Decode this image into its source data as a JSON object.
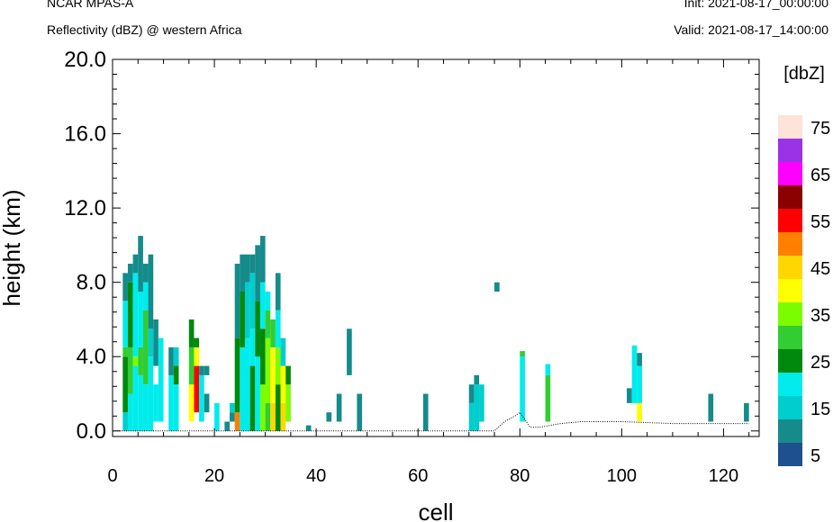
{
  "header": {
    "model": "NCAR MPAS-A",
    "field": "Reflectivity (dBZ) @ western Africa",
    "init": "Init: 2021-08-17_00:00:00",
    "valid": "Valid: 2021-08-17_14:00:00"
  },
  "chart_data": {
    "type": "heatmap",
    "title": "Reflectivity (dBZ) @ western Africa",
    "xlabel": "cell",
    "ylabel": "height (km)",
    "xlim": [
      0,
      127
    ],
    "ylim": [
      -0.3,
      20
    ],
    "x_ticks": [
      0,
      20,
      40,
      60,
      80,
      100,
      120
    ],
    "y_ticks": [
      0.0,
      4.0,
      8.0,
      12.0,
      16.0,
      20.0
    ],
    "y_tick_labels": [
      "0.0",
      "4.0",
      "8.0",
      "12.0",
      "16.0",
      "20.0"
    ],
    "colorbar": {
      "unit": "[dbZ]",
      "levels": [
        0,
        5,
        10,
        15,
        20,
        25,
        30,
        35,
        40,
        45,
        50,
        55,
        60,
        65,
        70,
        75,
        80
      ],
      "colors": [
        "#1e4f8e",
        "#158b8b",
        "#00cdcd",
        "#00ecec",
        "#00890c",
        "#32cd32",
        "#7cfc00",
        "#ffff00",
        "#ffd700",
        "#ff8000",
        "#ff0000",
        "#8b0000",
        "#ff00ff",
        "#9a32e6",
        "#fde3d8"
      ],
      "tick_values": [
        5,
        15,
        25,
        35,
        45,
        55,
        65,
        75
      ],
      "tick_labels": [
        "5",
        "15",
        "25",
        "35",
        "45",
        "55",
        "65",
        "75"
      ]
    },
    "columns": [
      {
        "x": 2.5,
        "segments": [
          [
            0.0,
            1.0,
            10
          ],
          [
            1.0,
            4.0,
            20
          ],
          [
            4.0,
            4.5,
            25
          ],
          [
            4.5,
            7.0,
            15
          ],
          [
            7.0,
            8.5,
            5
          ]
        ]
      },
      {
        "x": 3.5,
        "segments": [
          [
            0.0,
            2.0,
            15
          ],
          [
            2.0,
            4.5,
            25
          ],
          [
            4.5,
            8.0,
            20
          ],
          [
            8.0,
            9.0,
            5
          ]
        ]
      },
      {
        "x": 4.5,
        "segments": [
          [
            0.0,
            3.5,
            15
          ],
          [
            3.5,
            4.0,
            30
          ],
          [
            4.0,
            8.5,
            15
          ],
          [
            8.5,
            9.5,
            5
          ]
        ]
      },
      {
        "x": 5.5,
        "segments": [
          [
            0.0,
            3.0,
            15
          ],
          [
            3.0,
            4.5,
            25
          ],
          [
            4.5,
            7.5,
            15
          ],
          [
            7.5,
            10.5,
            5
          ]
        ]
      },
      {
        "x": 6.5,
        "segments": [
          [
            0.0,
            2.5,
            15
          ],
          [
            2.5,
            6.5,
            25
          ],
          [
            6.5,
            8.0,
            15
          ],
          [
            8.0,
            9.0,
            5
          ]
        ]
      },
      {
        "x": 7.5,
        "segments": [
          [
            0.0,
            4.0,
            15
          ],
          [
            4.0,
            5.5,
            10
          ],
          [
            5.5,
            9.5,
            5
          ]
        ]
      },
      {
        "x": 8.5,
        "segments": [
          [
            0.5,
            2.5,
            15
          ],
          [
            3.5,
            6.0,
            5
          ]
        ]
      },
      {
        "x": 9.5,
        "segments": [
          [
            0.5,
            5.0,
            15
          ]
        ]
      },
      {
        "x": 11.5,
        "segments": [
          [
            0.0,
            3.0,
            15
          ],
          [
            3.0,
            4.5,
            5
          ]
        ]
      },
      {
        "x": 12.5,
        "segments": [
          [
            0.0,
            2.5,
            15
          ],
          [
            2.5,
            3.5,
            20
          ],
          [
            3.5,
            4.5,
            10
          ]
        ]
      },
      {
        "x": 15.5,
        "segments": [
          [
            0.5,
            2.5,
            35
          ],
          [
            2.5,
            4.5,
            25
          ],
          [
            4.5,
            6.0,
            20
          ]
        ]
      },
      {
        "x": 16.5,
        "segments": [
          [
            1.0,
            3.5,
            50
          ],
          [
            3.5,
            4.5,
            35
          ],
          [
            4.5,
            5.0,
            20
          ]
        ]
      },
      {
        "x": 17.5,
        "segments": [
          [
            0.5,
            3.0,
            15
          ],
          [
            3.0,
            3.5,
            5
          ]
        ]
      },
      {
        "x": 18.5,
        "segments": [
          [
            1.0,
            2.0,
            5
          ],
          [
            3.0,
            3.5,
            5
          ]
        ]
      },
      {
        "x": 20.5,
        "segments": [
          [
            0.0,
            1.5,
            15
          ]
        ]
      },
      {
        "x": 22.5,
        "segments": [
          [
            0.0,
            0.5,
            5
          ]
        ]
      },
      {
        "x": 23.5,
        "segments": [
          [
            0.5,
            1.0,
            5
          ],
          [
            1.0,
            1.5,
            10
          ]
        ]
      },
      {
        "x": 24.5,
        "segments": [
          [
            0.0,
            1.0,
            45
          ],
          [
            1.0,
            5.0,
            20
          ],
          [
            5.0,
            9.0,
            5
          ]
        ]
      },
      {
        "x": 25.5,
        "segments": [
          [
            0.0,
            4.5,
            15
          ],
          [
            4.5,
            7.5,
            20
          ],
          [
            7.5,
            9.5,
            5
          ]
        ]
      },
      {
        "x": 26.5,
        "segments": [
          [
            0.0,
            5.0,
            15
          ],
          [
            5.0,
            8.0,
            10
          ],
          [
            8.0,
            9.5,
            5
          ]
        ]
      },
      {
        "x": 27.5,
        "segments": [
          [
            0.0,
            3.5,
            20
          ],
          [
            3.5,
            5.5,
            15
          ],
          [
            5.5,
            8.5,
            10
          ],
          [
            8.5,
            9.5,
            5
          ]
        ]
      },
      {
        "x": 28.5,
        "segments": [
          [
            0.0,
            4.0,
            15
          ],
          [
            4.0,
            7.0,
            20
          ],
          [
            7.0,
            10.0,
            5
          ]
        ]
      },
      {
        "x": 29.5,
        "segments": [
          [
            0.0,
            2.5,
            30
          ],
          [
            2.5,
            5.5,
            20
          ],
          [
            5.5,
            8.0,
            15
          ],
          [
            8.0,
            10.5,
            5
          ]
        ]
      },
      {
        "x": 30.5,
        "segments": [
          [
            0.0,
            1.5,
            25
          ],
          [
            1.5,
            5.0,
            30
          ],
          [
            5.0,
            6.5,
            25
          ],
          [
            6.5,
            7.5,
            15
          ]
        ]
      },
      {
        "x": 31.5,
        "segments": [
          [
            0.0,
            1.5,
            40
          ],
          [
            1.5,
            4.5,
            35
          ],
          [
            4.5,
            6.0,
            25
          ]
        ]
      },
      {
        "x": 32.5,
        "segments": [
          [
            0.0,
            2.5,
            20
          ],
          [
            2.5,
            4.5,
            30
          ],
          [
            4.5,
            6.5,
            15
          ],
          [
            6.5,
            8.5,
            5
          ]
        ]
      },
      {
        "x": 33.5,
        "segments": [
          [
            0.0,
            1.5,
            40
          ],
          [
            1.5,
            3.5,
            35
          ],
          [
            3.5,
            5.0,
            10
          ]
        ]
      },
      {
        "x": 34.5,
        "segments": [
          [
            0.5,
            2.5,
            30
          ],
          [
            2.5,
            3.5,
            20
          ]
        ]
      },
      {
        "x": 38.5,
        "segments": [
          [
            0.0,
            0.3,
            5
          ]
        ]
      },
      {
        "x": 42.5,
        "segments": [
          [
            0.5,
            1.0,
            5
          ]
        ]
      },
      {
        "x": 44.5,
        "segments": [
          [
            0.5,
            2.0,
            5
          ]
        ]
      },
      {
        "x": 46.5,
        "segments": [
          [
            3.0,
            5.5,
            5
          ]
        ]
      },
      {
        "x": 48.5,
        "segments": [
          [
            0.0,
            2.0,
            5
          ]
        ]
      },
      {
        "x": 61.5,
        "segments": [
          [
            0.0,
            2.0,
            5
          ]
        ]
      },
      {
        "x": 70.5,
        "segments": [
          [
            0.0,
            1.5,
            10
          ],
          [
            1.5,
            2.5,
            5
          ]
        ]
      },
      {
        "x": 71.5,
        "segments": [
          [
            0.0,
            2.5,
            10
          ],
          [
            2.5,
            3.0,
            5
          ]
        ]
      },
      {
        "x": 72.5,
        "segments": [
          [
            0.5,
            2.5,
            10
          ]
        ]
      },
      {
        "x": 75.5,
        "segments": [
          [
            7.5,
            8.0,
            5
          ]
        ]
      },
      {
        "x": 80.5,
        "segments": [
          [
            0.5,
            4.0,
            15
          ],
          [
            4.0,
            4.3,
            25
          ]
        ]
      },
      {
        "x": 85.5,
        "segments": [
          [
            0.5,
            3.0,
            25
          ],
          [
            3.0,
            3.6,
            15
          ]
        ]
      },
      {
        "x": 101.5,
        "segments": [
          [
            1.5,
            2.3,
            5
          ]
        ]
      },
      {
        "x": 102.5,
        "segments": [
          [
            1.5,
            4.6,
            15
          ]
        ]
      },
      {
        "x": 103.5,
        "segments": [
          [
            0.5,
            1.5,
            35
          ],
          [
            1.5,
            3.5,
            15
          ],
          [
            3.5,
            4.2,
            5
          ]
        ]
      },
      {
        "x": 117.5,
        "segments": [
          [
            0.5,
            2.0,
            5
          ]
        ]
      },
      {
        "x": 124.5,
        "segments": [
          [
            0.5,
            1.5,
            5
          ]
        ]
      }
    ],
    "terrain": [
      [
        0,
        0.0
      ],
      [
        75,
        0.0
      ],
      [
        77,
        0.5
      ],
      [
        79,
        0.8
      ],
      [
        80,
        1.0
      ],
      [
        82,
        0.2
      ],
      [
        84,
        0.2
      ],
      [
        86,
        0.3
      ],
      [
        88,
        0.4
      ],
      [
        92,
        0.5
      ],
      [
        100,
        0.5
      ],
      [
        110,
        0.4
      ],
      [
        125,
        0.4
      ]
    ]
  }
}
